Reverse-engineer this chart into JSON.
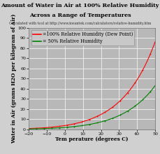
{
  "title_line1": "Amount of Water in Air at 100% Relative Humidity",
  "title_line2": "Across a Range of Temperatures",
  "subtitle": "Calculated with tool at http://www.kwantek.com/calculators/relative-humidity.htm",
  "xlabel": "Tem perature (degrees C)",
  "ylabel": "Water in Air (grams H2O per kilogram of Air)",
  "xlim": [
    -20,
    50
  ],
  "ylim": [
    0,
    100
  ],
  "xticks": [
    -20,
    -10,
    0,
    10,
    20,
    30,
    40,
    50
  ],
  "yticks": [
    0,
    10,
    20,
    30,
    40,
    50,
    60,
    70,
    80,
    90,
    100
  ],
  "bg_color": "#b8b8b8",
  "fig_color": "#d0d0d0",
  "grid_color": "#c8c8c8",
  "line1_color": "#ff0000",
  "line2_color": "#008000",
  "line1_label": "=100% Relative Humidity (Dew Point)",
  "line2_label": "= 50% Relative Humidity",
  "title_fontsize": 5.8,
  "subtitle_fontsize": 3.5,
  "axis_label_fontsize": 5.2,
  "tick_fontsize": 4.5,
  "legend_fontsize": 4.8
}
